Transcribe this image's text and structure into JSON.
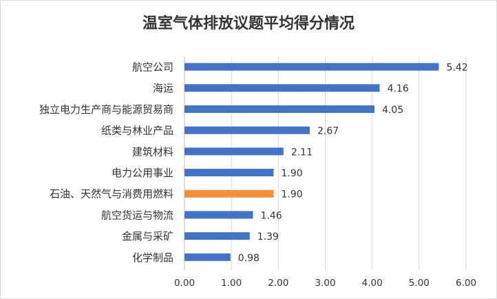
{
  "chart_data": {
    "type": "bar",
    "orientation": "horizontal",
    "title": "温室气体排放议题平均得分情况",
    "categories": [
      "航空公司",
      "海运",
      "独立电力生产商与能源贸易商",
      "纸类与林业产品",
      "建筑材料",
      "电力公用事业",
      "石油、天然气与消费用燃料",
      "航空货运与物流",
      "金属与采矿",
      "化学制品"
    ],
    "values": [
      5.42,
      4.16,
      4.05,
      2.67,
      2.11,
      1.9,
      1.9,
      1.46,
      1.39,
      0.98
    ],
    "value_labels": [
      "5.42",
      "4.16",
      "4.05",
      "2.67",
      "2.11",
      "1.90",
      "1.90",
      "1.46",
      "1.39",
      "0.98"
    ],
    "xlim": [
      0,
      6
    ],
    "x_ticks": [
      0,
      1,
      2,
      3,
      4,
      5,
      6
    ],
    "x_tick_labels": [
      "0.00",
      "1.00",
      "2.00",
      "3.00",
      "4.00",
      "5.00",
      "6.00"
    ],
    "grid": "vertical",
    "colors": {
      "default_bar": "#4472c4",
      "highlight_bar": "#f28e3c",
      "gridline": "#d9d9d9"
    },
    "highlight_index": 6
  }
}
